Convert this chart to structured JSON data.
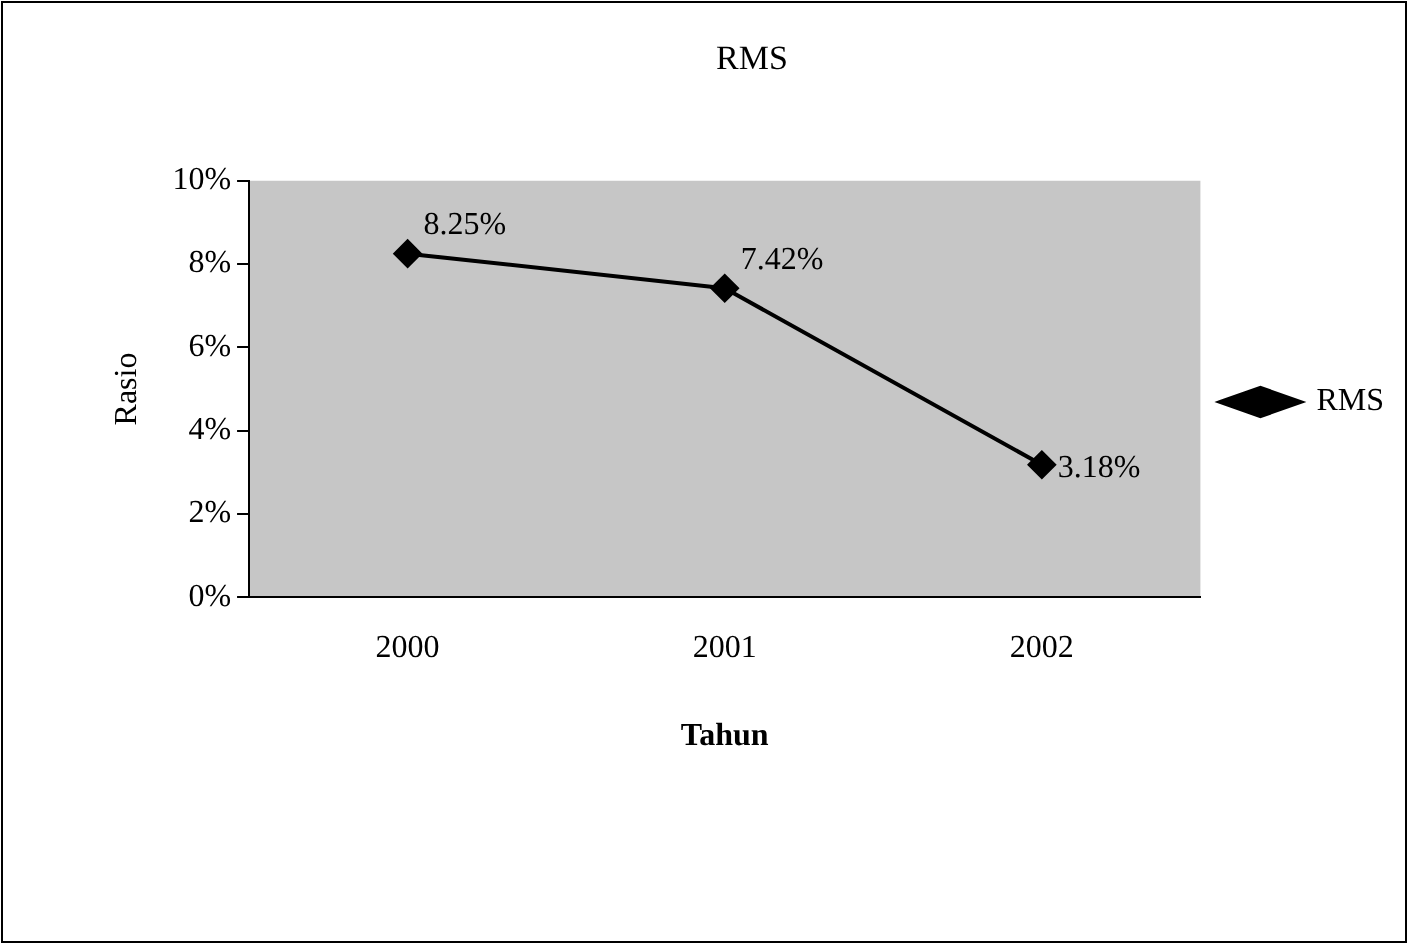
{
  "chart_data": {
    "type": "line",
    "title": "RMS",
    "xlabel": "Tahun",
    "ylabel": "Rasio",
    "categories": [
      "2000",
      "2001",
      "2002"
    ],
    "series": [
      {
        "name": "RMS",
        "color": "#000000",
        "values": [
          8.25,
          7.42,
          3.18
        ],
        "value_labels": [
          "8.25%",
          "7.42%",
          "3.18%"
        ]
      }
    ],
    "ylim": [
      0,
      10
    ],
    "yticks": [
      {
        "value": 0,
        "label": "0%"
      },
      {
        "value": 2,
        "label": "2%"
      },
      {
        "value": 4,
        "label": "4%"
      },
      {
        "value": 6,
        "label": "6%"
      },
      {
        "value": 8,
        "label": "8%"
      },
      {
        "value": 10,
        "label": "10%"
      }
    ],
    "grid": false,
    "legend": "right",
    "marker": "diamond",
    "line_style": "solid"
  }
}
